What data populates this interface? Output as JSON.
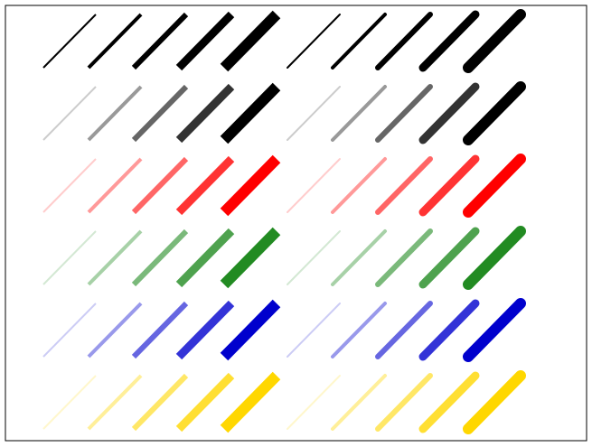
{
  "figure": {
    "background": "#ffffff",
    "frame_color": "#000000",
    "caps": [
      "butt",
      "round"
    ],
    "row_colors": [
      "#000000",
      "#000000",
      "#ff0000",
      "#228b22",
      "#0000cd",
      "#ffd700"
    ],
    "row_opacity_ramp": [
      [
        1,
        1,
        1,
        1,
        1
      ],
      [
        0.2,
        0.4,
        0.6,
        0.8,
        1
      ],
      [
        0.2,
        0.4,
        0.6,
        0.8,
        1
      ],
      [
        0.2,
        0.4,
        0.6,
        0.8,
        1
      ],
      [
        0.2,
        0.4,
        0.6,
        0.8,
        1
      ],
      [
        0.2,
        0.4,
        0.6,
        0.8,
        1
      ]
    ]
  }
}
